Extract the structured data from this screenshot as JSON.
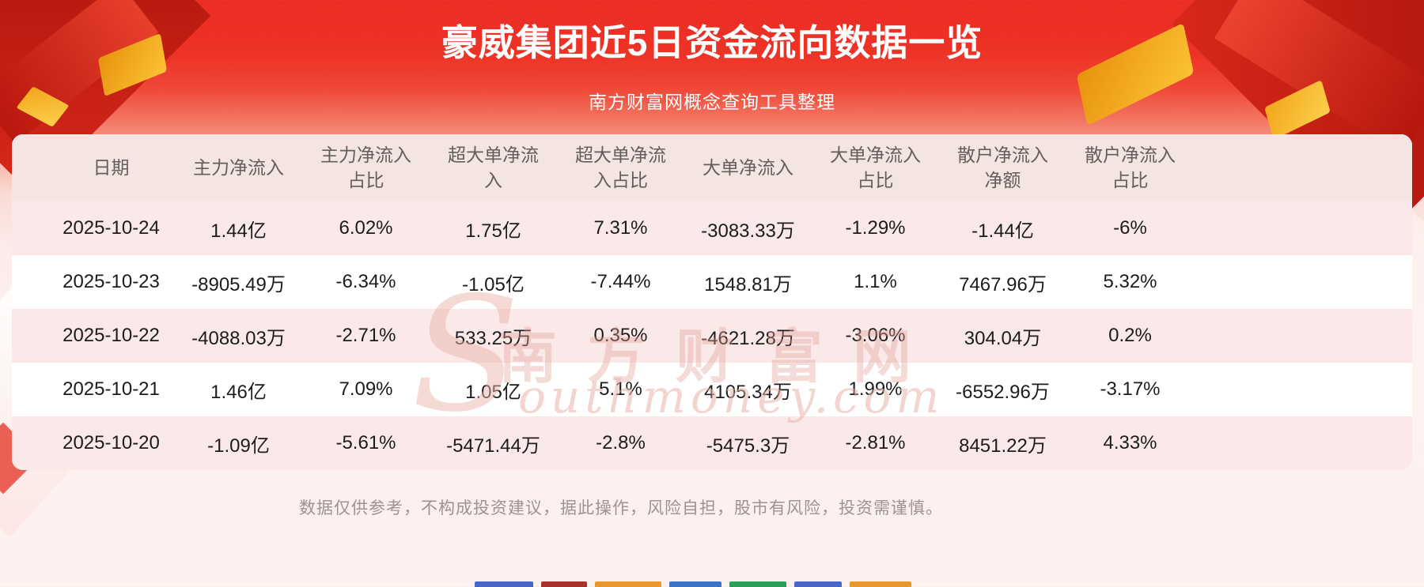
{
  "page": {
    "title": "豪威集团近5日资金流向数据一览",
    "subtitle": "南方财富网概念查询工具整理",
    "disclaimer": "数据仅供参考，不构成投资建议，据此操作，风险自担，股市有风险，投资需谨慎。"
  },
  "watermark": {
    "big_letter": "S",
    "cn": "南方财富网",
    "en": "outhmoney.com"
  },
  "colors": {
    "banner_red": "#ed2f24",
    "gold_accent": "#f2a51d",
    "header_row_bg": "#f4e5e3",
    "row_pink_bg": "#fbe9e9",
    "row_white_bg": "#ffffff",
    "header_text": "#635d5b",
    "cell_text": "#1c1c1c",
    "disclaimer_text": "#9e9292"
  },
  "chart_data": {
    "type": "table",
    "title": "豪威集团近5日资金流向数据一览",
    "columns": [
      "日期",
      "主力净流入",
      "主力净流入占比",
      "超大单净流入",
      "超大单净流入占比",
      "大单净流入",
      "大单净流入占比",
      "散户净流入净额",
      "散户净流入占比"
    ],
    "columns_display": [
      "日期",
      "主力净流入",
      "主力净流入\n占比",
      "超大单净流\n入",
      "超大单净流\n入占比",
      "大单净流入",
      "大单净流入\n占比",
      "散户净流入\n净额",
      "散户净流入\n占比"
    ],
    "rows": [
      [
        "2025-10-24",
        "1.44亿",
        "6.02%",
        "1.75亿",
        "7.31%",
        "-3083.33万",
        "-1.29%",
        "-1.44亿",
        "-6%"
      ],
      [
        "2025-10-23",
        "-8905.49万",
        "-6.34%",
        "-1.05亿",
        "-7.44%",
        "1548.81万",
        "1.1%",
        "7467.96万",
        "5.32%"
      ],
      [
        "2025-10-22",
        "-4088.03万",
        "-2.71%",
        "533.25万",
        "0.35%",
        "-4621.28万",
        "-3.06%",
        "304.04万",
        "0.2%"
      ],
      [
        "2025-10-21",
        "1.46亿",
        "7.09%",
        "1.05亿",
        "5.1%",
        "4105.34万",
        "1.99%",
        "-6552.96万",
        "-3.17%"
      ],
      [
        "2025-10-20",
        "-1.09亿",
        "-5.61%",
        "-5471.44万",
        "-2.8%",
        "-5475.3万",
        "-2.81%",
        "8451.22万",
        "4.33%"
      ]
    ]
  }
}
